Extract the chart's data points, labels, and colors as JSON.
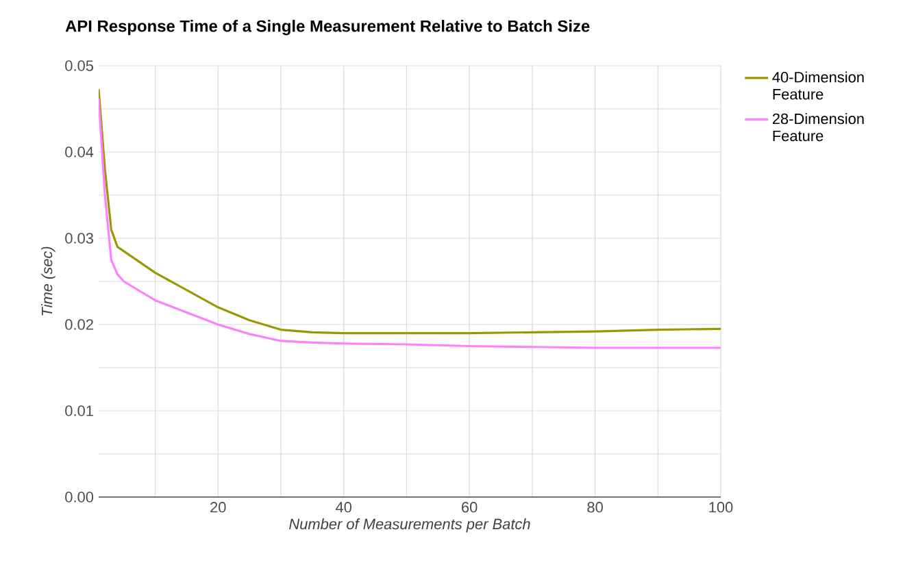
{
  "chart_data": {
    "type": "line",
    "title": "API Response Time of a Single Measurement Relative to Batch Size",
    "xlabel": "Number of Measurements per Batch",
    "ylabel": "Time (sec)",
    "x": [
      1,
      2,
      3,
      4,
      5,
      10,
      15,
      20,
      25,
      30,
      35,
      40,
      50,
      60,
      70,
      80,
      90,
      100
    ],
    "series": [
      {
        "name": "40-Dimension Feature",
        "color": "#999900",
        "values": [
          0.0473,
          0.038,
          0.031,
          0.029,
          0.0285,
          0.026,
          0.024,
          0.022,
          0.0205,
          0.0194,
          0.0191,
          0.019,
          0.019,
          0.019,
          0.0191,
          0.0192,
          0.0194,
          0.0195
        ]
      },
      {
        "name": "28-Dimension Feature",
        "color": "#ff80ff",
        "values": [
          0.0462,
          0.035,
          0.0275,
          0.0258,
          0.025,
          0.0228,
          0.0214,
          0.02,
          0.0189,
          0.0181,
          0.0179,
          0.0178,
          0.0177,
          0.0175,
          0.0174,
          0.0173,
          0.0173,
          0.0173
        ]
      }
    ],
    "xlim": [
      1,
      100
    ],
    "xticks": [
      {
        "value": 10,
        "label": null
      },
      20,
      {
        "value": 30,
        "label": null
      },
      40,
      {
        "value": 50,
        "label": null
      },
      60,
      {
        "value": 70,
        "label": null
      },
      80,
      {
        "value": 90,
        "label": null
      },
      100
    ],
    "ylim": [
      0,
      0.05
    ],
    "yticks": [
      {
        "value": 0,
        "label": "0.00"
      },
      {
        "value": 0.005,
        "label": null
      },
      {
        "value": 0.01,
        "label": "0.01"
      },
      {
        "value": 0.015,
        "label": null
      },
      {
        "value": 0.02,
        "label": "0.02"
      },
      {
        "value": 0.025,
        "label": null
      },
      {
        "value": 0.03,
        "label": "0.03"
      },
      {
        "value": 0.035,
        "label": null
      },
      {
        "value": 0.04,
        "label": "0.04"
      },
      {
        "value": 0.045,
        "label": null
      },
      {
        "value": 0.05,
        "label": "0.05"
      }
    ],
    "grid": true,
    "legend": "right",
    "marker": "none",
    "line_style": "solid"
  }
}
